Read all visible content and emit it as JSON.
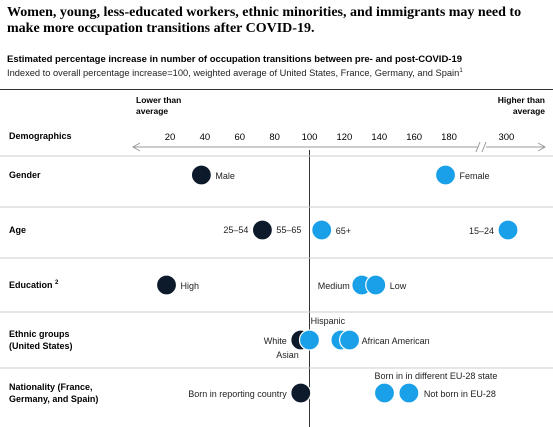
{
  "headline": "Women, young, less-educated workers, ethnic minorities, and immigrants may need to make more occupation transitions after COVID-19.",
  "subtitle": "Estimated percentage increase in number of occupation transitions between pre- and post-COVID-19",
  "subtitle_note": "Indexed to overall percentage increase=100, weighted average of United States, France, Germany, and Spain",
  "footnote_mark": "1",
  "colors": {
    "dark": "#0c1a2b",
    "light": "#1aa0e8",
    "axis": "#999999",
    "rule": "#cccccc"
  },
  "chart_data": {
    "type": "scatter",
    "title": "Estimated percentage increase in number of occupation transitions between pre- and post-COVID-19",
    "xlabel_left": "Lower than average",
    "xlabel_right": "Higher than average",
    "row_header": "Demographics",
    "x_ticks": [
      "20",
      "40",
      "60",
      "80",
      "100",
      "120",
      "140",
      "160",
      "180",
      "300"
    ],
    "reference_value": 100,
    "axis_break": "between 180 and 300",
    "rows": [
      {
        "label": "Gender",
        "points": [
          {
            "label": "Male",
            "value": 38,
            "shade": "dark"
          },
          {
            "label": "Female",
            "value": 178,
            "shade": "light"
          }
        ]
      },
      {
        "label": "Age",
        "points": [
          {
            "label": "25–54",
            "value": 73,
            "shade": "dark"
          },
          {
            "label": "55–65",
            "value": 73,
            "shade": "dark"
          },
          {
            "label": "65+",
            "value": 107,
            "shade": "light"
          },
          {
            "label": "15–24",
            "value": 303,
            "shade": "light"
          }
        ]
      },
      {
        "label": "Education",
        "label_sup": "2",
        "points": [
          {
            "label": "High",
            "value": 18,
            "shade": "dark"
          },
          {
            "label": "Medium",
            "value": 130,
            "shade": "light"
          },
          {
            "label": "Low",
            "value": 138,
            "shade": "light"
          }
        ]
      },
      {
        "label": "Ethnic groups (United States)",
        "points": [
          {
            "label": "White",
            "value": 95,
            "shade": "dark"
          },
          {
            "label": "Asian",
            "value": 100,
            "shade": "light"
          },
          {
            "label": "Hispanic",
            "value": 118,
            "shade": "light"
          },
          {
            "label": "African American",
            "value": 123,
            "shade": "light"
          }
        ]
      },
      {
        "label": "Nationality (France, Germany, and Spain)",
        "points": [
          {
            "label": "Born in reporting country",
            "value": 95,
            "shade": "dark"
          },
          {
            "label": "Born in in different EU-28 state",
            "value": 143,
            "shade": "light"
          },
          {
            "label": "Not born in EU-28",
            "value": 157,
            "shade": "light"
          }
        ]
      }
    ]
  }
}
